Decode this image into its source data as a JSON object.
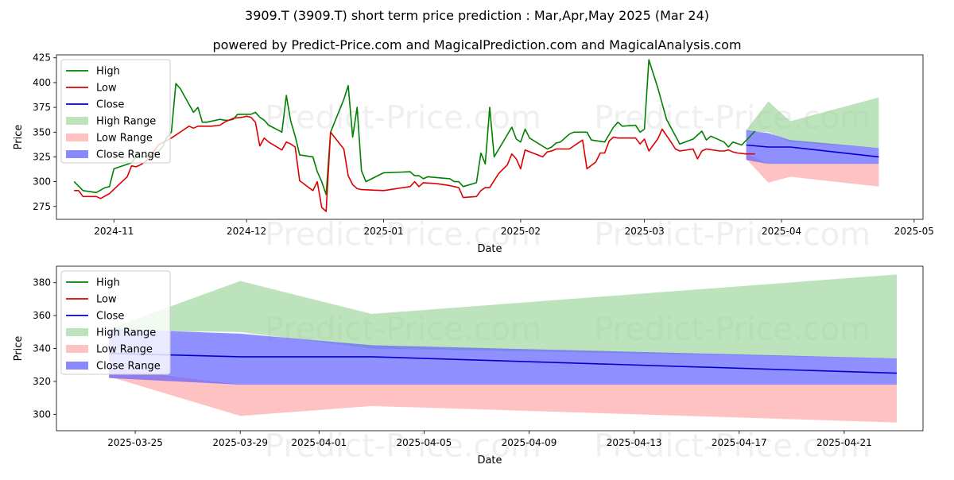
{
  "title": "3909.T (3909.T) short term price prediction : Mar,Apr,May 2025 (Mar 24)",
  "subtitle": "powered by Predict-Price.com and MagicalPrediction.com and MagicalAnalysis.com",
  "watermark": "Predict-Price.com",
  "colors": {
    "high": "#008000",
    "low": "#dd0000",
    "close": "#0000cc",
    "high_range": "#8fd18f",
    "low_range": "#ff9a9a",
    "close_range": "#6060ff"
  },
  "legend": [
    "High",
    "Low",
    "Close",
    "High Range",
    "Low Range",
    "Close Range"
  ],
  "chart_data": [
    {
      "type": "line",
      "xlabel": "Date",
      "ylabel": "Price",
      "xlim": [
        "2024-10-19",
        "2025-05-03"
      ],
      "ylim": [
        262,
        428
      ],
      "yticks": [
        275,
        300,
        325,
        350,
        375,
        400,
        425
      ],
      "xticks": [
        {
          "date": "2024-11-01",
          "label": "2024-11"
        },
        {
          "date": "2024-12-01",
          "label": "2024-12"
        },
        {
          "date": "2025-01-01",
          "label": "2025-01"
        },
        {
          "date": "2025-02-01",
          "label": "2025-02"
        },
        {
          "date": "2025-03-01",
          "label": "2025-03"
        },
        {
          "date": "2025-04-01",
          "label": "2025-04"
        },
        {
          "date": "2025-05-01",
          "label": "2025-05"
        }
      ],
      "series": [
        {
          "name": "High",
          "points": [
            [
              "2024-10-23",
              300
            ],
            [
              "2024-10-25",
              291
            ],
            [
              "2024-10-28",
              289
            ],
            [
              "2024-10-30",
              294
            ],
            [
              "2024-10-31",
              295
            ],
            [
              "2024-11-01",
              313
            ],
            [
              "2024-11-05",
              319
            ],
            [
              "2024-11-06",
              325
            ],
            [
              "2024-11-07",
              326
            ],
            [
              "2024-11-08",
              325
            ],
            [
              "2024-11-11",
              330
            ],
            [
              "2024-11-12",
              335
            ],
            [
              "2024-11-13",
              345
            ],
            [
              "2024-11-14",
              350
            ],
            [
              "2024-11-15",
              399
            ],
            [
              "2024-11-16",
              394
            ],
            [
              "2024-11-19",
              370
            ],
            [
              "2024-11-20",
              375
            ],
            [
              "2024-11-21",
              360
            ],
            [
              "2024-11-22",
              360
            ],
            [
              "2024-11-25",
              363
            ],
            [
              "2024-11-26",
              362
            ],
            [
              "2024-11-27",
              362
            ],
            [
              "2024-11-28",
              363
            ],
            [
              "2024-11-29",
              368
            ],
            [
              "2024-12-02",
              368
            ],
            [
              "2024-12-03",
              370
            ],
            [
              "2024-12-04",
              365
            ],
            [
              "2024-12-05",
              362
            ],
            [
              "2024-12-06",
              357
            ],
            [
              "2024-12-09",
              350
            ],
            [
              "2024-12-10",
              387
            ],
            [
              "2024-12-11",
              361
            ],
            [
              "2024-12-12",
              346
            ],
            [
              "2024-12-13",
              327
            ],
            [
              "2024-12-16",
              325
            ],
            [
              "2024-12-17",
              310
            ],
            [
              "2024-12-18",
              300
            ],
            [
              "2024-12-19",
              287
            ],
            [
              "2024-12-20",
              350
            ],
            [
              "2024-12-23",
              383
            ],
            [
              "2024-12-24",
              397
            ],
            [
              "2024-12-25",
              345
            ],
            [
              "2024-12-26",
              375
            ],
            [
              "2024-12-27",
              311
            ],
            [
              "2024-12-28",
              300
            ],
            [
              "2025-01-01",
              309
            ],
            [
              "2025-01-07",
              310
            ],
            [
              "2025-01-08",
              306
            ],
            [
              "2025-01-09",
              306
            ],
            [
              "2025-01-10",
              303
            ],
            [
              "2025-01-11",
              305
            ],
            [
              "2025-01-16",
              303
            ],
            [
              "2025-01-17",
              300
            ],
            [
              "2025-01-18",
              300
            ],
            [
              "2025-01-19",
              295
            ],
            [
              "2025-01-22",
              299
            ],
            [
              "2025-01-23",
              329
            ],
            [
              "2025-01-24",
              318
            ],
            [
              "2025-01-25",
              375
            ],
            [
              "2025-01-26",
              325
            ],
            [
              "2025-01-30",
              355
            ],
            [
              "2025-01-31",
              343
            ],
            [
              "2025-02-01",
              340
            ],
            [
              "2025-02-02",
              353
            ],
            [
              "2025-02-03",
              344
            ],
            [
              "2025-02-07",
              333
            ],
            [
              "2025-02-08",
              335
            ],
            [
              "2025-02-09",
              339
            ],
            [
              "2025-02-10",
              340
            ],
            [
              "2025-02-12",
              348
            ],
            [
              "2025-02-13",
              350
            ],
            [
              "2025-02-16",
              350
            ],
            [
              "2025-02-17",
              342
            ],
            [
              "2025-02-20",
              340
            ],
            [
              "2025-02-22",
              355
            ],
            [
              "2025-02-23",
              360
            ],
            [
              "2025-02-24",
              356
            ],
            [
              "2025-02-27",
              357
            ],
            [
              "2025-02-28",
              350
            ],
            [
              "2025-03-01",
              353
            ],
            [
              "2025-03-02",
              423
            ],
            [
              "2025-03-04",
              395
            ],
            [
              "2025-03-06",
              363
            ],
            [
              "2025-03-09",
              338
            ],
            [
              "2025-03-12",
              343
            ],
            [
              "2025-03-13",
              347
            ],
            [
              "2025-03-14",
              351
            ],
            [
              "2025-03-15",
              342
            ],
            [
              "2025-03-16",
              346
            ],
            [
              "2025-03-19",
              340
            ],
            [
              "2025-03-20",
              335
            ],
            [
              "2025-03-21",
              340
            ],
            [
              "2025-03-23",
              337
            ],
            [
              "2025-03-26",
              351
            ]
          ]
        },
        {
          "name": "Low",
          "points": [
            [
              "2024-10-23",
              291
            ],
            [
              "2024-10-24",
              291
            ],
            [
              "2024-10-25",
              285
            ],
            [
              "2024-10-28",
              285
            ],
            [
              "2024-10-29",
              283
            ],
            [
              "2024-10-31",
              288
            ],
            [
              "2024-11-04",
              305
            ],
            [
              "2024-11-05",
              316
            ],
            [
              "2024-11-06",
              315
            ],
            [
              "2024-11-07",
              317
            ],
            [
              "2024-11-08",
              320
            ],
            [
              "2024-11-09",
              323
            ],
            [
              "2024-11-10",
              330
            ],
            [
              "2024-11-11",
              337
            ],
            [
              "2024-11-14",
              344
            ],
            [
              "2024-11-17",
              353
            ],
            [
              "2024-11-18",
              356
            ],
            [
              "2024-11-19",
              354
            ],
            [
              "2024-11-20",
              356
            ],
            [
              "2024-11-23",
              356
            ],
            [
              "2024-11-25",
              357
            ],
            [
              "2024-11-26",
              360
            ],
            [
              "2024-11-27",
              362
            ],
            [
              "2024-11-28",
              364
            ],
            [
              "2024-11-30",
              365
            ],
            [
              "2024-12-01",
              366
            ],
            [
              "2024-12-02",
              365
            ],
            [
              "2024-12-03",
              360
            ],
            [
              "2024-12-04",
              336
            ],
            [
              "2024-12-05",
              344
            ],
            [
              "2024-12-06",
              340
            ],
            [
              "2024-12-09",
              332
            ],
            [
              "2024-12-10",
              340
            ],
            [
              "2024-12-11",
              338
            ],
            [
              "2024-12-12",
              335
            ],
            [
              "2024-12-13",
              301
            ],
            [
              "2024-12-16",
              291
            ],
            [
              "2024-12-17",
              300
            ],
            [
              "2024-12-18",
              274
            ],
            [
              "2024-12-19",
              270
            ],
            [
              "2024-12-20",
              350
            ],
            [
              "2024-12-23",
              333
            ],
            [
              "2024-12-24",
              306
            ],
            [
              "2024-12-25",
              297
            ],
            [
              "2024-12-26",
              293
            ],
            [
              "2024-12-27",
              292
            ],
            [
              "2025-01-01",
              291
            ],
            [
              "2025-01-07",
              295
            ],
            [
              "2025-01-08",
              300
            ],
            [
              "2025-01-09",
              295
            ],
            [
              "2025-01-10",
              299
            ],
            [
              "2025-01-13",
              298
            ],
            [
              "2025-01-16",
              296
            ],
            [
              "2025-01-17",
              295
            ],
            [
              "2025-01-18",
              294
            ],
            [
              "2025-01-19",
              284
            ],
            [
              "2025-01-22",
              285
            ],
            [
              "2025-01-23",
              291
            ],
            [
              "2025-01-24",
              294
            ],
            [
              "2025-01-25",
              294
            ],
            [
              "2025-01-27",
              308
            ],
            [
              "2025-01-29",
              317
            ],
            [
              "2025-01-30",
              328
            ],
            [
              "2025-01-31",
              323
            ],
            [
              "2025-02-01",
              313
            ],
            [
              "2025-02-02",
              332
            ],
            [
              "2025-02-06",
              325
            ],
            [
              "2025-02-07",
              330
            ],
            [
              "2025-02-08",
              331
            ],
            [
              "2025-02-09",
              333
            ],
            [
              "2025-02-12",
              333
            ],
            [
              "2025-02-15",
              342
            ],
            [
              "2025-02-16",
              313
            ],
            [
              "2025-02-18",
              320
            ],
            [
              "2025-02-19",
              329
            ],
            [
              "2025-02-20",
              329
            ],
            [
              "2025-02-21",
              341
            ],
            [
              "2025-02-22",
              345
            ],
            [
              "2025-02-23",
              344
            ],
            [
              "2025-02-26",
              344
            ],
            [
              "2025-02-27",
              344
            ],
            [
              "2025-02-28",
              338
            ],
            [
              "2025-03-01",
              343
            ],
            [
              "2025-03-02",
              331
            ],
            [
              "2025-03-04",
              343
            ],
            [
              "2025-03-05",
              353
            ],
            [
              "2025-03-07",
              340
            ],
            [
              "2025-03-08",
              333
            ],
            [
              "2025-03-09",
              331
            ],
            [
              "2025-03-12",
              333
            ],
            [
              "2025-03-13",
              323
            ],
            [
              "2025-03-14",
              331
            ],
            [
              "2025-03-15",
              333
            ],
            [
              "2025-03-18",
              331
            ],
            [
              "2025-03-19",
              331
            ],
            [
              "2025-03-20",
              332
            ],
            [
              "2025-03-21",
              330
            ],
            [
              "2025-03-22",
              329
            ],
            [
              "2025-03-24",
              328
            ],
            [
              "2025-03-26",
              328
            ]
          ]
        }
      ],
      "forecast": {
        "dates": [
          "2025-03-24",
          "2025-03-29",
          "2025-04-03",
          "2025-04-23"
        ],
        "close": [
          337,
          335,
          335,
          325
        ],
        "high_range": [
          [
            351,
            352
          ],
          [
            350,
            381
          ],
          [
            340,
            361
          ],
          [
            334,
            385
          ]
        ],
        "low_range": [
          [
            323,
            328
          ],
          [
            299,
            318
          ],
          [
            305,
            318
          ],
          [
            295,
            318
          ]
        ],
        "close_range": [
          [
            322,
            352
          ],
          [
            318,
            349
          ],
          [
            318,
            342
          ],
          [
            318,
            334
          ]
        ]
      }
    },
    {
      "type": "line",
      "xlabel": "Date",
      "ylabel": "Price",
      "xlim": [
        "2025-03-22",
        "2025-04-24"
      ],
      "ylim": [
        290,
        390
      ],
      "yticks": [
        300,
        320,
        340,
        360,
        380
      ],
      "xticks": [
        {
          "date": "2025-03-25",
          "label": "2025-03-25"
        },
        {
          "date": "2025-03-29",
          "label": "2025-03-29"
        },
        {
          "date": "2025-04-01",
          "label": "2025-04-01"
        },
        {
          "date": "2025-04-05",
          "label": "2025-04-05"
        },
        {
          "date": "2025-04-09",
          "label": "2025-04-09"
        },
        {
          "date": "2025-04-13",
          "label": "2025-04-13"
        },
        {
          "date": "2025-04-17",
          "label": "2025-04-17"
        },
        {
          "date": "2025-04-21",
          "label": "2025-04-21"
        }
      ],
      "forecast": {
        "dates": [
          "2025-03-24",
          "2025-03-29",
          "2025-04-03",
          "2025-04-23"
        ],
        "close": [
          337,
          335,
          335,
          325
        ],
        "high_range": [
          [
            351,
            352
          ],
          [
            350,
            381
          ],
          [
            340,
            361
          ],
          [
            334,
            385
          ]
        ],
        "low_range": [
          [
            323,
            328
          ],
          [
            299,
            318
          ],
          [
            305,
            318
          ],
          [
            295,
            318
          ]
        ],
        "close_range": [
          [
            322,
            352
          ],
          [
            318,
            349
          ],
          [
            318,
            342
          ],
          [
            318,
            334
          ]
        ]
      }
    }
  ]
}
